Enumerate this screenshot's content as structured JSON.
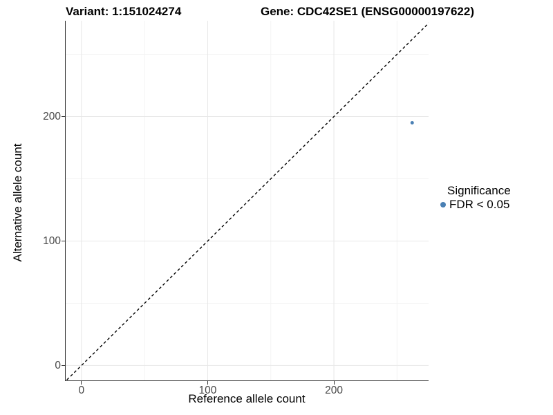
{
  "header": {
    "variant_title": "Variant: 1:151024274",
    "gene_title": "Gene: CDC42SE1 (ENSG00000197622)"
  },
  "chart_data": {
    "type": "scatter",
    "xlabel": "Reference allele count",
    "ylabel": "Alternative allele count",
    "xlim": [
      -12.5,
      275
    ],
    "ylim": [
      -12,
      277
    ],
    "x_major_ticks": [
      0,
      100,
      200
    ],
    "x_minor_ticks": [
      50,
      150,
      250
    ],
    "y_major_ticks": [
      0,
      100,
      200
    ],
    "y_minor_ticks": [
      50,
      150,
      250
    ],
    "grid": "major and minor gridlines, light gray on white",
    "identity_line": {
      "slope": 1,
      "intercept": 0,
      "style": "dashed",
      "color": "#000000"
    },
    "series": [
      {
        "name": "FDR < 0.05",
        "color": "#4a80b4",
        "points": [
          {
            "x": 262,
            "y": 195
          }
        ]
      }
    ],
    "legend": {
      "title": "Significance",
      "position": "right",
      "items": [
        {
          "label": "FDR < 0.05",
          "color": "#4a80b4"
        }
      ]
    }
  },
  "colors": {
    "background": "#ffffff",
    "axis_line": "#333333",
    "grid_major": "#e7e7e7",
    "grid_minor": "#f3f3f3",
    "tick_label": "#474747",
    "title_text": "#000000",
    "point": "#4a80b4"
  }
}
